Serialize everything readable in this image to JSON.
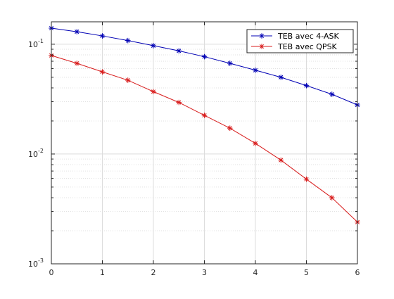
{
  "chart_data": {
    "type": "line",
    "title": "",
    "xlabel": "",
    "ylabel": "",
    "x_scale": "linear",
    "y_scale": "log",
    "xlim": [
      0,
      6
    ],
    "ylim": [
      0.001,
      0.16
    ],
    "grid": true,
    "minor_grid": true,
    "legend_position": "top-right",
    "x_ticks": [
      {
        "value": 0,
        "label": "0"
      },
      {
        "value": 1,
        "label": "1"
      },
      {
        "value": 2,
        "label": "2"
      },
      {
        "value": 3,
        "label": "3"
      },
      {
        "value": 4,
        "label": "4"
      },
      {
        "value": 5,
        "label": "5"
      },
      {
        "value": 6,
        "label": "6"
      }
    ],
    "y_ticks": [
      {
        "value": 0.001,
        "base": "10",
        "exp": "-3"
      },
      {
        "value": 0.01,
        "base": "10",
        "exp": "-2"
      },
      {
        "value": 0.1,
        "base": "10",
        "exp": "-1"
      }
    ],
    "x": [
      0,
      0.5,
      1,
      1.5,
      2,
      2.5,
      3,
      3.5,
      4,
      4.5,
      5,
      5.5,
      6
    ],
    "series": [
      {
        "name": "TEB avec 4-ASK",
        "color": "#0000b4",
        "marker": "asterisk",
        "values": [
          0.14,
          0.13,
          0.119,
          0.108,
          0.097,
          0.087,
          0.077,
          0.067,
          0.058,
          0.05,
          0.042,
          0.035,
          0.028
        ]
      },
      {
        "name": "TEB avec QPSK",
        "color": "#d81c1c",
        "marker": "asterisk",
        "values": [
          0.079,
          0.067,
          0.056,
          0.047,
          0.037,
          0.0295,
          0.0225,
          0.0172,
          0.0125,
          0.0088,
          0.0059,
          0.004,
          0.0024
        ]
      }
    ]
  }
}
